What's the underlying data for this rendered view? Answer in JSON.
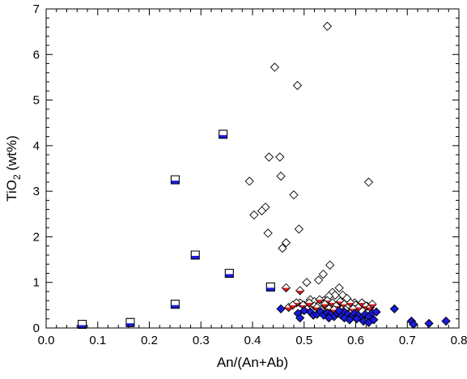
{
  "chart_data": {
    "type": "scatter",
    "xlabel": "An/(An+Ab)",
    "ylabel": {
      "main": "TiO",
      "sub": "2",
      "unit": " (wt%)"
    },
    "xlim": [
      0.0,
      0.8
    ],
    "ylim": [
      0,
      7
    ],
    "xticks": [
      "0.0",
      "0.1",
      "0.2",
      "0.3",
      "0.4",
      "0.5",
      "0.6",
      "0.7",
      "0.8"
    ],
    "yticks": [
      "0",
      "1",
      "2",
      "3",
      "4",
      "5",
      "6",
      "7"
    ],
    "grid": false,
    "legend": "none",
    "colors": {
      "blue": "#1a1adb",
      "red": "#e02020",
      "outline": "#000000",
      "open": "#ffffff"
    },
    "series": [
      {
        "marker": "square-half-filled-blue",
        "points": [
          [
            0.07,
            0.08
          ],
          [
            0.163,
            0.12
          ],
          [
            0.25,
            0.52
          ],
          [
            0.25,
            3.25
          ],
          [
            0.289,
            1.6
          ],
          [
            0.343,
            4.25
          ],
          [
            0.355,
            1.2
          ],
          [
            0.435,
            0.9
          ]
        ]
      },
      {
        "marker": "diamond-open",
        "points": [
          [
            0.545,
            6.62
          ],
          [
            0.443,
            5.72
          ],
          [
            0.487,
            5.32
          ],
          [
            0.453,
            3.75
          ],
          [
            0.432,
            3.75
          ],
          [
            0.455,
            3.33
          ],
          [
            0.394,
            3.22
          ],
          [
            0.625,
            3.2
          ],
          [
            0.48,
            2.92
          ],
          [
            0.425,
            2.65
          ],
          [
            0.418,
            2.57
          ],
          [
            0.403,
            2.48
          ],
          [
            0.49,
            2.17
          ],
          [
            0.43,
            2.08
          ],
          [
            0.465,
            1.87
          ],
          [
            0.458,
            1.75
          ],
          [
            0.55,
            1.38
          ],
          [
            0.537,
            1.18
          ],
          [
            0.528,
            1.05
          ],
          [
            0.505,
            1.0
          ],
          [
            0.568,
            0.88
          ],
          [
            0.555,
            0.78
          ],
          [
            0.56,
            0.72
          ],
          [
            0.575,
            0.72
          ],
          [
            0.548,
            0.7
          ],
          [
            0.583,
            0.65
          ],
          [
            0.492,
            0.55
          ],
          [
            0.5,
            0.5
          ],
          [
            0.512,
            0.62
          ],
          [
            0.52,
            0.58
          ],
          [
            0.53,
            0.53
          ],
          [
            0.538,
            0.6
          ],
          [
            0.598,
            0.55
          ],
          [
            0.608,
            0.5
          ],
          [
            0.615,
            0.52
          ],
          [
            0.622,
            0.48
          ],
          [
            0.565,
            0.5
          ],
          [
            0.545,
            0.45
          ]
        ]
      },
      {
        "marker": "diamond-half-red",
        "points": [
          [
            0.465,
            0.88
          ],
          [
            0.492,
            0.82
          ],
          [
            0.545,
            0.6
          ],
          [
            0.54,
            0.52
          ],
          [
            0.555,
            0.55
          ],
          [
            0.562,
            0.48
          ],
          [
            0.57,
            0.58
          ],
          [
            0.578,
            0.52
          ],
          [
            0.585,
            0.45
          ],
          [
            0.59,
            0.55
          ],
          [
            0.6,
            0.5
          ],
          [
            0.605,
            0.45
          ],
          [
            0.612,
            0.55
          ],
          [
            0.62,
            0.48
          ],
          [
            0.628,
            0.45
          ],
          [
            0.632,
            0.52
          ],
          [
            0.51,
            0.55
          ],
          [
            0.52,
            0.48
          ],
          [
            0.525,
            0.45
          ],
          [
            0.53,
            0.62
          ],
          [
            0.505,
            0.42
          ],
          [
            0.498,
            0.5
          ],
          [
            0.485,
            0.55
          ],
          [
            0.47,
            0.45
          ],
          [
            0.478,
            0.5
          ],
          [
            0.533,
            0.4
          ],
          [
            0.548,
            0.42
          ],
          [
            0.558,
            0.4
          ],
          [
            0.58,
            0.4
          ],
          [
            0.595,
            0.42
          ]
        ]
      },
      {
        "marker": "diamond-filled-blue",
        "points": [
          [
            0.455,
            0.42
          ],
          [
            0.488,
            0.32
          ],
          [
            0.492,
            0.22
          ],
          [
            0.5,
            0.38
          ],
          [
            0.512,
            0.35
          ],
          [
            0.518,
            0.28
          ],
          [
            0.525,
            0.3
          ],
          [
            0.532,
            0.36
          ],
          [
            0.538,
            0.28
          ],
          [
            0.545,
            0.33
          ],
          [
            0.552,
            0.3
          ],
          [
            0.558,
            0.25
          ],
          [
            0.565,
            0.32
          ],
          [
            0.572,
            0.28
          ],
          [
            0.578,
            0.35
          ],
          [
            0.585,
            0.3
          ],
          [
            0.592,
            0.25
          ],
          [
            0.598,
            0.32
          ],
          [
            0.605,
            0.28
          ],
          [
            0.612,
            0.22
          ],
          [
            0.618,
            0.3
          ],
          [
            0.625,
            0.25
          ],
          [
            0.632,
            0.33
          ],
          [
            0.64,
            0.35
          ],
          [
            0.578,
            0.22
          ],
          [
            0.548,
            0.22
          ],
          [
            0.588,
            0.18
          ],
          [
            0.602,
            0.2
          ],
          [
            0.615,
            0.15
          ],
          [
            0.625,
            0.12
          ],
          [
            0.675,
            0.42
          ],
          [
            0.708,
            0.15
          ],
          [
            0.712,
            0.08
          ],
          [
            0.742,
            0.1
          ],
          [
            0.775,
            0.15
          ],
          [
            0.635,
            0.18
          ],
          [
            0.568,
            0.38
          ]
        ]
      }
    ]
  }
}
